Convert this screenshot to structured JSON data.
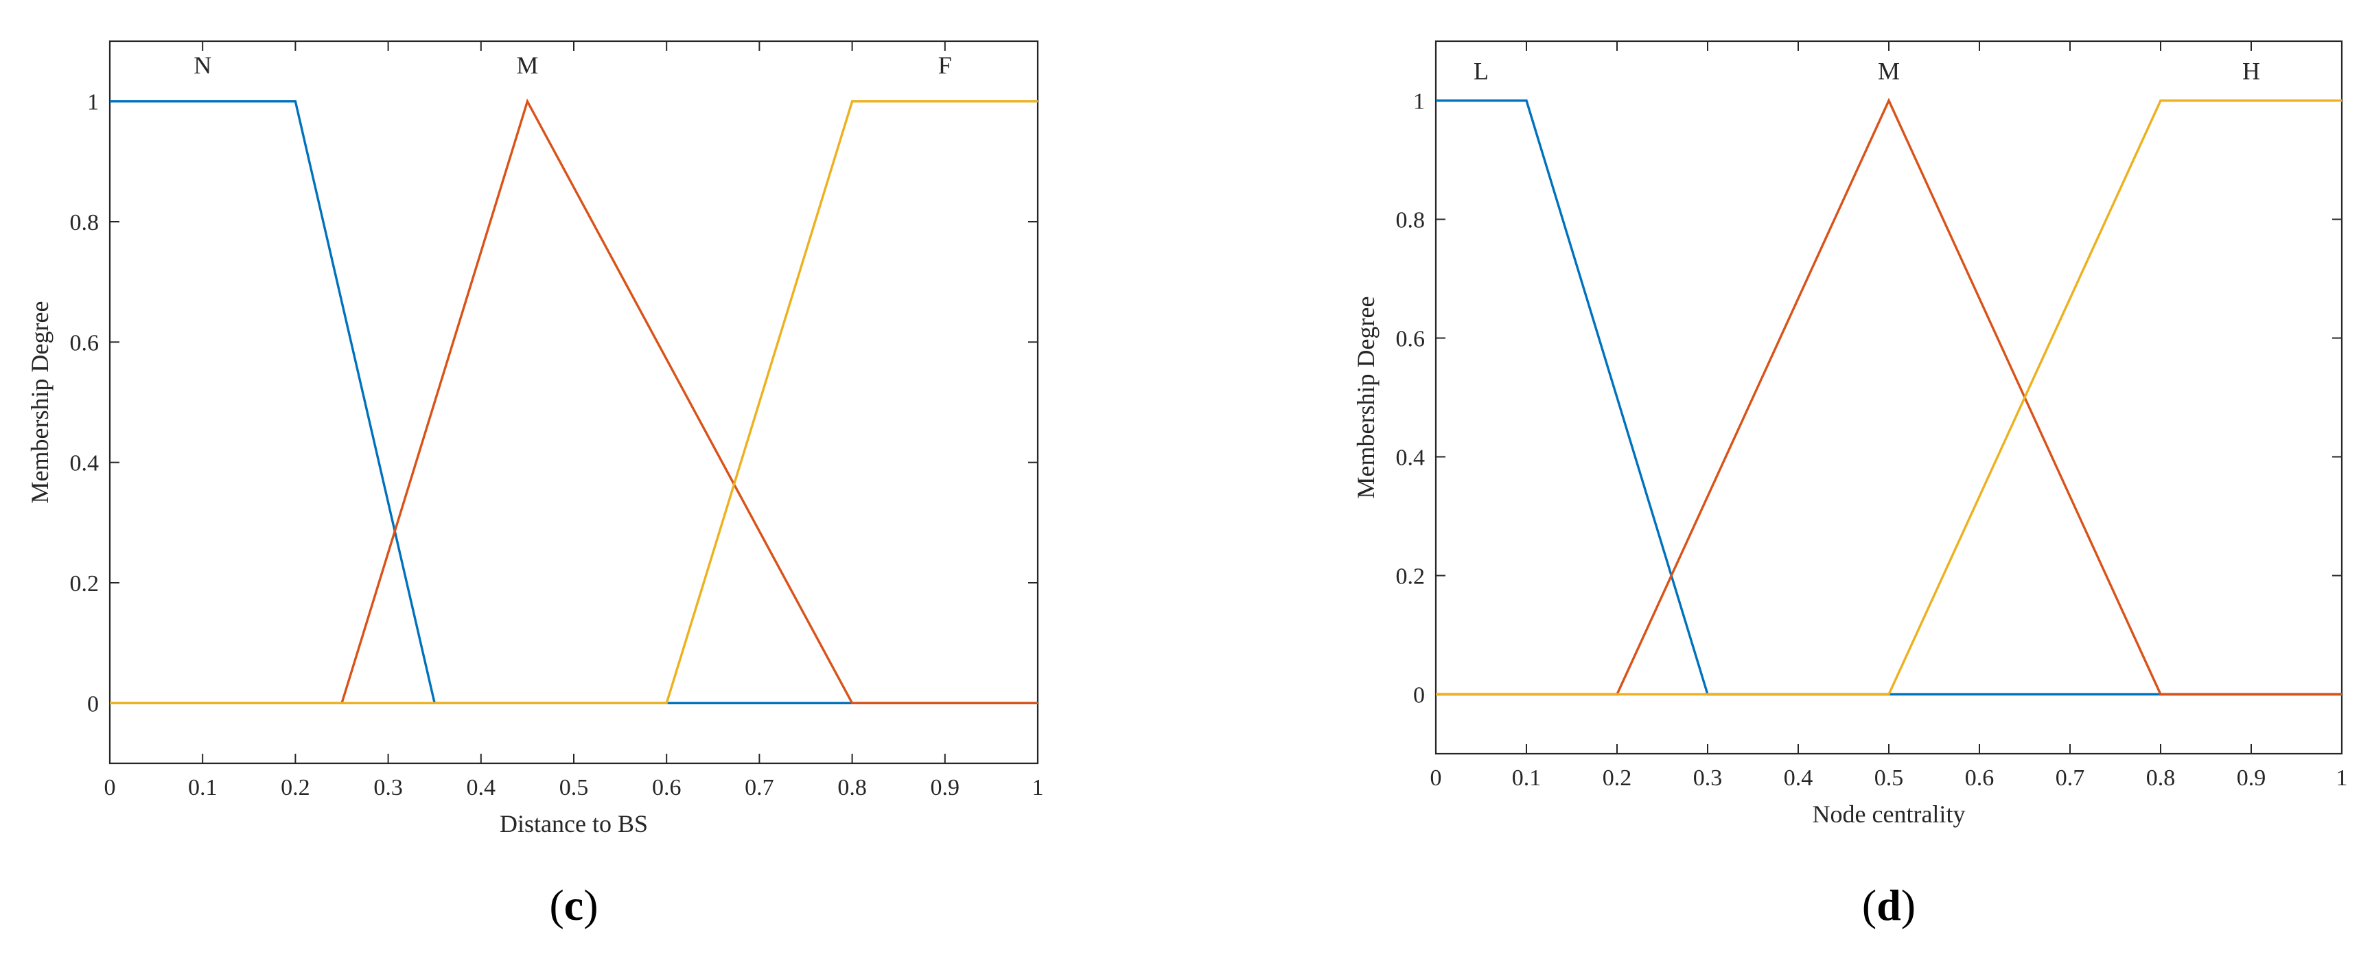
{
  "chart_data": [
    {
      "type": "line",
      "panel_label": "c",
      "xlabel": "Distance to BS",
      "ylabel": "Membership Degree",
      "xlim": [
        0,
        1
      ],
      "ylim": [
        -0.1,
        1.1
      ],
      "xticks": [
        0,
        0.1,
        0.2,
        0.3,
        0.4,
        0.5,
        0.6,
        0.7,
        0.8,
        0.9,
        1
      ],
      "yticks": [
        0,
        0.2,
        0.4,
        0.6,
        0.8,
        1
      ],
      "grid": false,
      "series": [
        {
          "name": "N",
          "color": "#0072BD",
          "x": [
            0,
            0.2,
            0.35,
            1
          ],
          "y": [
            1,
            1,
            0,
            0
          ],
          "label_pos": [
            0.1,
            1.06
          ]
        },
        {
          "name": "M",
          "color": "#D95319",
          "x": [
            0,
            0.25,
            0.45,
            0.8,
            1
          ],
          "y": [
            0,
            0,
            1,
            0,
            0
          ],
          "label_pos": [
            0.45,
            1.06
          ]
        },
        {
          "name": "F",
          "color": "#EDB120",
          "x": [
            0,
            0.6,
            0.8,
            1
          ],
          "y": [
            0,
            0,
            1,
            1
          ],
          "label_pos": [
            0.9,
            1.06
          ]
        }
      ]
    },
    {
      "type": "line",
      "panel_label": "d",
      "xlabel": "Node centrality",
      "ylabel": "Membership Degree",
      "xlim": [
        0,
        1
      ],
      "ylim": [
        -0.1,
        1.1
      ],
      "xticks": [
        0,
        0.1,
        0.2,
        0.3,
        0.4,
        0.5,
        0.6,
        0.7,
        0.8,
        0.9,
        1
      ],
      "yticks": [
        0,
        0.2,
        0.4,
        0.6,
        0.8,
        1
      ],
      "grid": false,
      "series": [
        {
          "name": "L",
          "color": "#0072BD",
          "x": [
            0,
            0.1,
            0.3,
            1
          ],
          "y": [
            1,
            1,
            0,
            0
          ],
          "label_pos": [
            0.05,
            1.05
          ]
        },
        {
          "name": "M",
          "color": "#D95319",
          "x": [
            0,
            0.2,
            0.5,
            0.8,
            1
          ],
          "y": [
            0,
            0,
            1,
            0,
            0
          ],
          "label_pos": [
            0.5,
            1.05
          ]
        },
        {
          "name": "H",
          "color": "#EDB120",
          "x": [
            0,
            0.5,
            0.8,
            1
          ],
          "y": [
            0,
            0,
            1,
            1
          ],
          "label_pos": [
            0.9,
            1.05
          ]
        }
      ]
    }
  ]
}
